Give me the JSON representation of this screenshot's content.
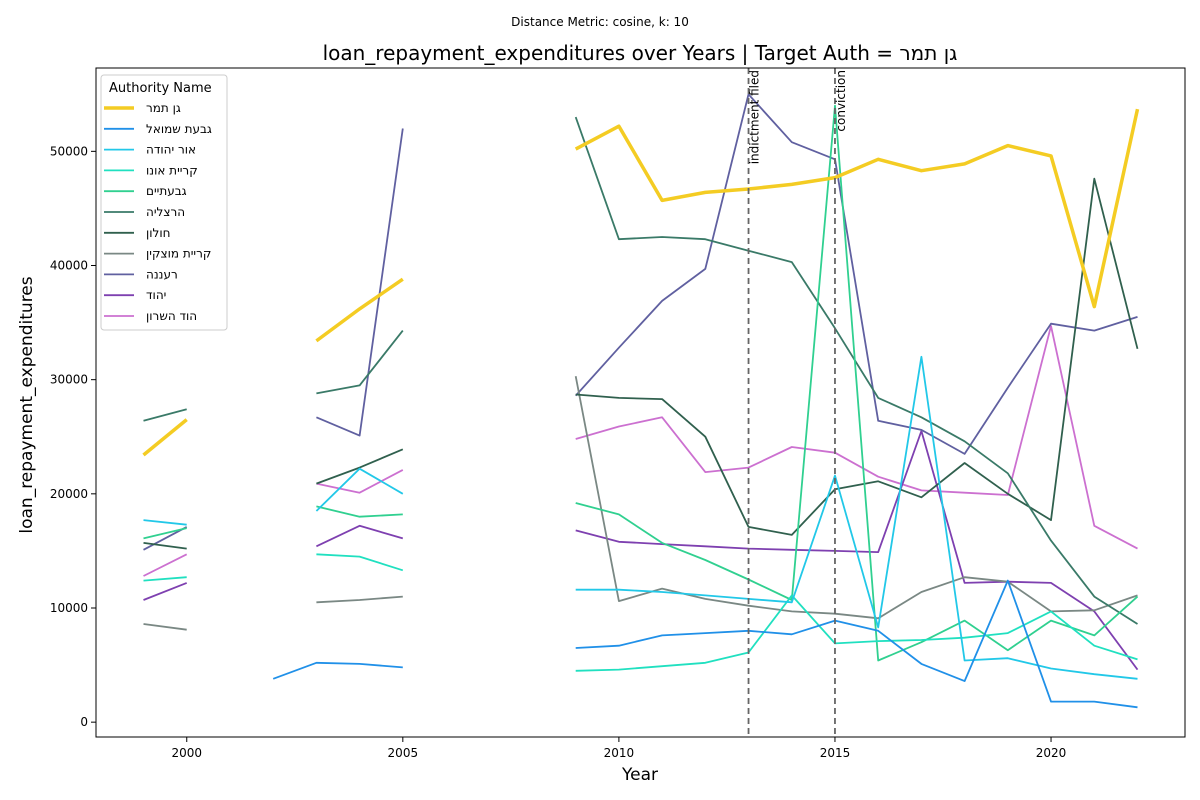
{
  "chart_data": {
    "type": "line",
    "suptitle": "Distance Metric: cosine, k: 10",
    "title": "loan_repayment_expenditures over Years | Target Auth = גן תמר",
    "xlabel": "Year",
    "ylabel": "loan_repayment_expenditures",
    "xlim": [
      1997.9,
      2023.1
    ],
    "ylim": [
      -1300,
      57300
    ],
    "xticks": [
      2000,
      2005,
      2010,
      2015,
      2020
    ],
    "yticks": [
      0,
      10000,
      20000,
      30000,
      40000,
      50000
    ],
    "grid": false,
    "legend": {
      "title": "Authority Name",
      "placement": "top-left"
    },
    "events": [
      {
        "x": 2013,
        "label": "indictment filed"
      },
      {
        "x": 2015,
        "label": "conviction"
      }
    ],
    "x": [
      1999,
      2000,
      2001,
      2002,
      2003,
      2004,
      2005,
      2006,
      2007,
      2008,
      2009,
      2010,
      2011,
      2012,
      2013,
      2014,
      2015,
      2016,
      2017,
      2018,
      2019,
      2020,
      2021,
      2022
    ],
    "series": [
      {
        "name": "גן תמר",
        "color": "#f4cc23",
        "width": 3.5,
        "values": [
          23400,
          26500,
          null,
          null,
          33400,
          36200,
          38800,
          null,
          null,
          null,
          50200,
          52200,
          45700,
          46400,
          46700,
          47100,
          47700,
          49300,
          48300,
          48900,
          50500,
          49600,
          36400,
          53700
        ]
      },
      {
        "name": "גבעת שמואל",
        "color": "#2090e8",
        "width": 1.8,
        "values": [
          null,
          null,
          null,
          3800,
          5200,
          5100,
          4800,
          null,
          null,
          null,
          6500,
          6700,
          7600,
          7800,
          8000,
          7700,
          8900,
          8000,
          5100,
          3600,
          12400,
          1800,
          1800,
          1300
        ]
      },
      {
        "name": "אור יהודה",
        "color": "#22c8e8",
        "width": 1.8,
        "values": [
          17700,
          17300,
          null,
          null,
          18500,
          22200,
          20000,
          null,
          null,
          null,
          11600,
          11600,
          11400,
          11100,
          10800,
          10500,
          21600,
          8300,
          32000,
          5400,
          5600,
          4700,
          4200,
          3800
        ]
      },
      {
        "name": "קריית אונו",
        "color": "#20e0c0",
        "width": 1.8,
        "values": [
          12400,
          12700,
          null,
          null,
          14700,
          14500,
          13300,
          null,
          null,
          null,
          4500,
          4600,
          4900,
          5200,
          6100,
          11100,
          6900,
          7100,
          7200,
          7400,
          7800,
          9700,
          6700,
          5500
        ]
      },
      {
        "name": "גבעתיים",
        "color": "#30d090",
        "width": 1.8,
        "values": [
          16100,
          17000,
          null,
          null,
          18900,
          18000,
          18200,
          null,
          null,
          null,
          19200,
          18200,
          15700,
          14200,
          12500,
          10700,
          54000,
          5400,
          7000,
          8900,
          6300,
          8900,
          7600,
          11000
        ]
      },
      {
        "name": "הרצליה",
        "color": "#3a7a68",
        "width": 1.8,
        "values": [
          26400,
          27400,
          null,
          null,
          28800,
          29500,
          34300,
          null,
          null,
          null,
          53000,
          42300,
          42500,
          42300,
          41300,
          40300,
          34500,
          28400,
          26700,
          24600,
          21800,
          15900,
          11000,
          8600
        ]
      },
      {
        "name": "חולון",
        "color": "#30604e",
        "width": 1.8,
        "values": [
          15700,
          15200,
          null,
          null,
          20900,
          22300,
          23900,
          null,
          null,
          null,
          28700,
          28400,
          28300,
          25000,
          17100,
          16400,
          20400,
          21100,
          19700,
          22700,
          20000,
          17700,
          47600,
          32700
        ]
      },
      {
        "name": "קריית מוצקין",
        "color": "#7a8884",
        "width": 1.8,
        "values": [
          8600,
          8100,
          null,
          null,
          10500,
          10700,
          11000,
          null,
          null,
          null,
          30300,
          10600,
          11700,
          10800,
          10200,
          9700,
          9500,
          9100,
          11400,
          12700,
          12300,
          9700,
          9800,
          11100
        ]
      },
      {
        "name": "רעננה",
        "color": "#6060a0",
        "width": 1.8,
        "values": [
          15100,
          17100,
          null,
          null,
          26700,
          25100,
          52000,
          null,
          null,
          null,
          28600,
          32800,
          36900,
          39700,
          55000,
          50800,
          49300,
          26400,
          25600,
          23500,
          29300,
          34900,
          34300,
          35500
        ]
      },
      {
        "name": "יהוד",
        "color": "#7e40b0",
        "width": 1.8,
        "values": [
          10700,
          12200,
          null,
          null,
          15400,
          17200,
          16100,
          null,
          null,
          null,
          16800,
          15800,
          15600,
          15400,
          15200,
          15100,
          15000,
          14900,
          25500,
          12200,
          12300,
          12200,
          9700,
          4600
        ]
      },
      {
        "name": "הוד השרון",
        "color": "#cc70d0",
        "width": 1.8,
        "values": [
          12800,
          14700,
          null,
          null,
          20900,
          20100,
          22100,
          null,
          null,
          null,
          24800,
          25900,
          26700,
          21900,
          22300,
          24100,
          23600,
          21500,
          20300,
          20100,
          19900,
          34700,
          17200,
          15200
        ]
      }
    ]
  }
}
